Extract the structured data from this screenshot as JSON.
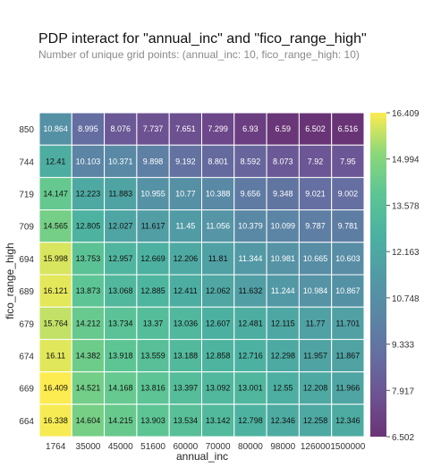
{
  "chart_data": {
    "type": "heatmap",
    "title": "PDP interact for \"annual_inc\" and \"fico_range_high\"",
    "subtitle": "Number of unique grid points: (annual_inc: 10, fico_range_high: 10)",
    "xlabel": "annual_inc",
    "ylabel": "fico_range_high",
    "x": [
      "1764",
      "35000",
      "45000",
      "51600",
      "60000",
      "70000",
      "80000",
      "98000",
      "126000",
      "1500000"
    ],
    "y": [
      "850",
      "744",
      "719",
      "709",
      "694",
      "689",
      "679",
      "674",
      "669",
      "664"
    ],
    "values": [
      [
        10.864,
        8.995,
        8.076,
        7.737,
        7.651,
        7.299,
        6.93,
        6.59,
        6.502,
        6.516
      ],
      [
        12.41,
        10.103,
        10.371,
        9.898,
        9.192,
        8.801,
        8.592,
        8.073,
        7.92,
        7.95
      ],
      [
        14.147,
        12.223,
        11.883,
        10.955,
        10.77,
        10.388,
        9.656,
        9.348,
        9.021,
        9.002
      ],
      [
        14.565,
        12.805,
        12.027,
        11.617,
        11.45,
        11.056,
        10.379,
        10.099,
        9.787,
        9.781
      ],
      [
        15.998,
        13.753,
        12.957,
        12.669,
        12.206,
        11.81,
        11.344,
        10.981,
        10.665,
        10.603
      ],
      [
        16.121,
        13.873,
        13.068,
        12.885,
        12.411,
        12.062,
        11.632,
        11.244,
        10.984,
        10.867
      ],
      [
        15.764,
        14.212,
        13.734,
        13.37,
        13.036,
        12.607,
        12.481,
        12.115,
        11.77,
        11.701
      ],
      [
        16.11,
        14.382,
        13.918,
        13.559,
        13.188,
        12.858,
        12.716,
        12.298,
        11.957,
        11.867
      ],
      [
        16.409,
        14.521,
        14.168,
        13.816,
        13.397,
        13.092,
        13.001,
        12.55,
        12.208,
        11.966
      ],
      [
        16.338,
        14.604,
        14.215,
        13.903,
        13.534,
        13.142,
        12.798,
        12.346,
        12.258,
        12.346
      ]
    ],
    "colorbar": {
      "min": 6.502,
      "max": 16.409,
      "ticks": [
        "16.409",
        "14.994",
        "13.578",
        "12.163",
        "10.748",
        "9.333",
        "7.917",
        "6.502"
      ],
      "colormap": "viridis"
    }
  }
}
